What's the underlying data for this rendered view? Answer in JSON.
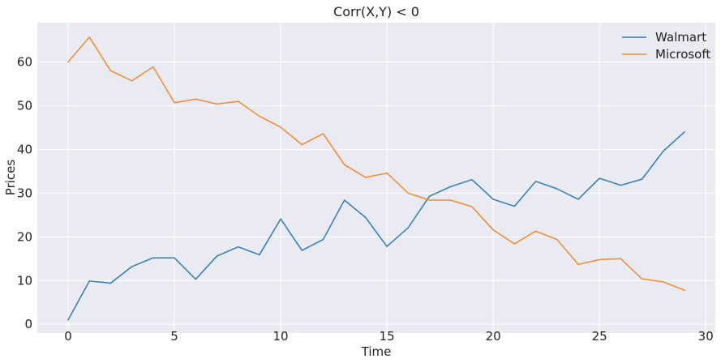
{
  "chart_data": {
    "type": "line",
    "title": "Corr(X,Y) < 0",
    "xlabel": "Time",
    "ylabel": "Prices",
    "xlim": [
      -1.45,
      30.45
    ],
    "ylim": [
      -2.0,
      69.0
    ],
    "xticks": [
      0,
      5,
      10,
      15,
      20,
      25,
      30
    ],
    "yticks": [
      0,
      10,
      20,
      30,
      40,
      50,
      60
    ],
    "grid": true,
    "legend_position": "top-right",
    "x": [
      0,
      1,
      2,
      3,
      4,
      5,
      6,
      7,
      8,
      9,
      10,
      11,
      12,
      13,
      14,
      15,
      16,
      17,
      18,
      19,
      20,
      21,
      22,
      23,
      24,
      25,
      26,
      27,
      28,
      29
    ],
    "series": [
      {
        "name": "Walmart",
        "color": "#2f7bb4",
        "values": [
          1.0,
          9.9,
          9.4,
          13.2,
          15.2,
          15.2,
          10.3,
          15.6,
          17.7,
          15.9,
          24.1,
          16.9,
          19.4,
          28.4,
          24.4,
          17.8,
          22.1,
          29.3,
          31.5,
          33.1,
          28.6,
          27.0,
          32.7,
          31.0,
          28.6,
          33.4,
          31.8,
          33.2,
          39.6,
          44.0
        ]
      },
      {
        "name": "Microsoft",
        "color": "#f08a2c",
        "values": [
          60.0,
          65.7,
          58.0,
          55.7,
          58.9,
          50.7,
          51.5,
          50.4,
          51.0,
          47.6,
          45.1,
          41.1,
          43.6,
          36.5,
          33.6,
          34.6,
          30.0,
          28.4,
          28.4,
          26.9,
          21.6,
          18.4,
          21.3,
          19.4,
          13.7,
          14.8,
          15.0,
          10.4,
          9.7,
          7.8
        ]
      }
    ]
  }
}
